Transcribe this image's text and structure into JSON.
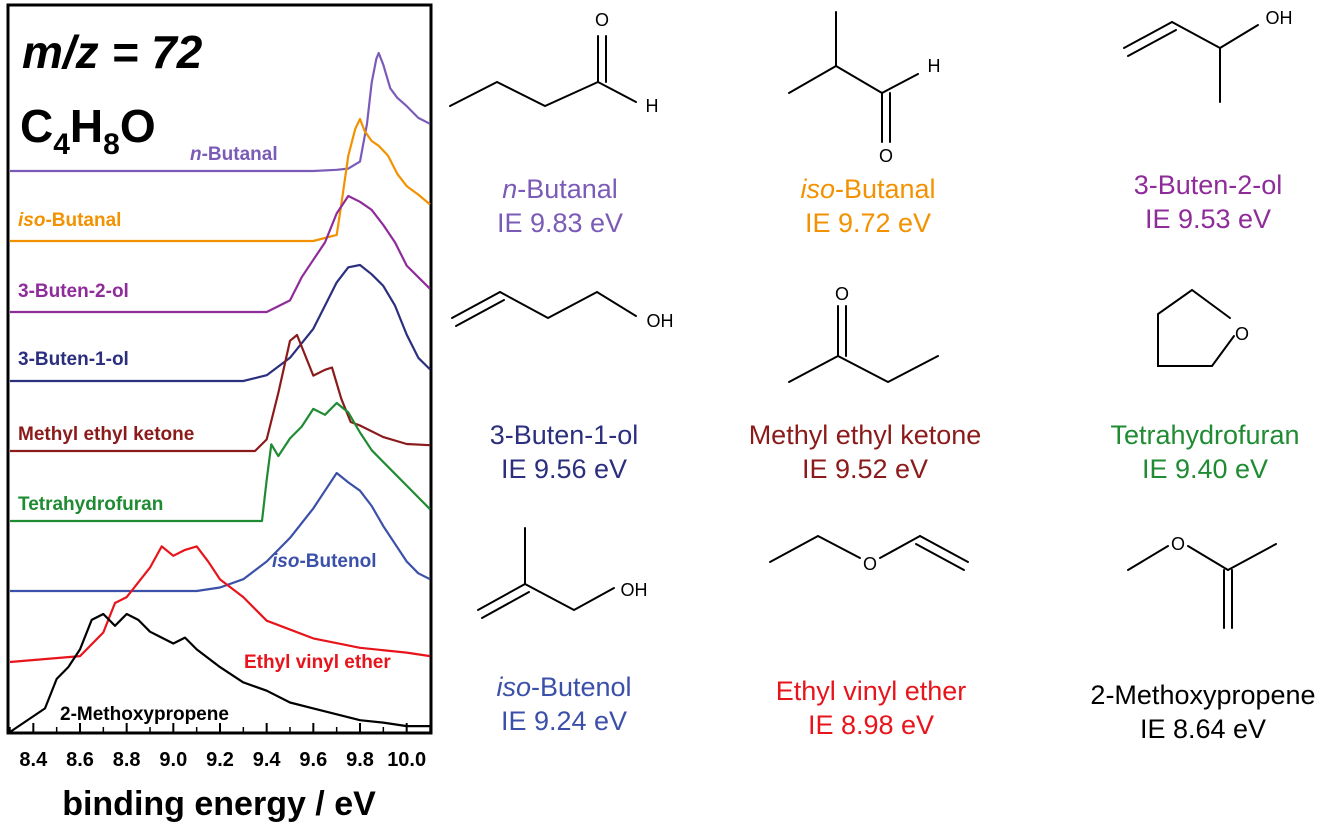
{
  "chart_data": {
    "type": "line",
    "title_mz": "m/z = 72",
    "formula": {
      "C": "C",
      "c_sub": "4",
      "H": "H",
      "h_sub": "8",
      "O": "O"
    },
    "xlabel": "binding energy / eV",
    "ylabel": "",
    "xlim": [
      8.3,
      10.1
    ],
    "xticks": [
      "8.4",
      "8.6",
      "8.8",
      "9.0",
      "9.2",
      "9.4",
      "9.6",
      "9.8",
      "10.0"
    ],
    "grid": false,
    "series": [
      {
        "prefix": "n",
        "name": "-Butanal",
        "color": "#7B5BB8",
        "offset": 1.0,
        "x": [
          8.3,
          9.6,
          9.7,
          9.75,
          9.8,
          9.83,
          9.85,
          9.87,
          9.88,
          9.9,
          9.93,
          9.96,
          10.0,
          10.05,
          10.1
        ],
        "y": [
          0.0,
          0.0,
          0.01,
          0.02,
          0.08,
          0.4,
          0.75,
          0.95,
          1.0,
          0.9,
          0.7,
          0.62,
          0.55,
          0.45,
          0.4
        ]
      },
      {
        "prefix": "iso",
        "name": "-Butanal",
        "color": "#F39200",
        "offset": 1.0,
        "x": [
          8.3,
          9.6,
          9.7,
          9.72,
          9.75,
          9.78,
          9.8,
          9.82,
          9.85,
          9.88,
          9.92,
          9.96,
          10.0,
          10.05,
          10.1
        ],
        "y": [
          0.0,
          0.0,
          0.05,
          0.3,
          0.7,
          0.92,
          1.0,
          0.9,
          0.82,
          0.78,
          0.7,
          0.55,
          0.45,
          0.38,
          0.3
        ]
      },
      {
        "name": "3-Buten-2-ol",
        "color": "#8E2C9A",
        "offset": 1.0,
        "x": [
          8.3,
          9.4,
          9.5,
          9.55,
          9.6,
          9.65,
          9.7,
          9.75,
          9.8,
          9.85,
          9.9,
          9.95,
          10.0,
          10.05,
          10.1
        ],
        "y": [
          0.0,
          0.0,
          0.1,
          0.3,
          0.45,
          0.6,
          0.85,
          1.0,
          0.95,
          0.88,
          0.75,
          0.6,
          0.4,
          0.3,
          0.2
        ]
      },
      {
        "name": "3-Buten-1-ol",
        "color": "#2B2F7E",
        "offset": 1.0,
        "x": [
          8.3,
          9.3,
          9.4,
          9.5,
          9.6,
          9.65,
          9.7,
          9.75,
          9.8,
          9.85,
          9.9,
          9.95,
          10.0,
          10.05,
          10.1
        ],
        "y": [
          0.0,
          0.0,
          0.05,
          0.2,
          0.45,
          0.65,
          0.85,
          0.98,
          1.0,
          0.92,
          0.82,
          0.65,
          0.4,
          0.2,
          0.1
        ]
      },
      {
        "name": "Methyl ethyl ketone",
        "color": "#8B1A1A",
        "offset": 1.0,
        "x": [
          8.3,
          9.35,
          9.4,
          9.45,
          9.5,
          9.53,
          9.56,
          9.6,
          9.65,
          9.68,
          9.72,
          9.76,
          9.8,
          9.9,
          10.0,
          10.1
        ],
        "y": [
          0.0,
          0.0,
          0.1,
          0.5,
          0.95,
          1.0,
          0.85,
          0.65,
          0.7,
          0.72,
          0.45,
          0.25,
          0.22,
          0.12,
          0.06,
          0.05
        ]
      },
      {
        "name": "Tetrahydrofuran",
        "color": "#1F8B32",
        "offset": 1.0,
        "x": [
          8.3,
          9.38,
          9.4,
          9.42,
          9.45,
          9.5,
          9.55,
          9.6,
          9.65,
          9.7,
          9.75,
          9.8,
          9.85,
          9.9,
          9.95,
          10.0,
          10.1
        ],
        "y": [
          0.0,
          0.0,
          0.35,
          0.65,
          0.55,
          0.7,
          0.8,
          0.95,
          0.9,
          1.0,
          0.92,
          0.75,
          0.6,
          0.5,
          0.4,
          0.3,
          0.1
        ]
      },
      {
        "prefix": "iso",
        "name": "-Butenol",
        "color": "#3B50A8",
        "offset": 1.0,
        "x": [
          8.3,
          9.1,
          9.2,
          9.3,
          9.4,
          9.5,
          9.6,
          9.65,
          9.7,
          9.75,
          9.8,
          9.85,
          9.9,
          9.95,
          10.0,
          10.05,
          10.1
        ],
        "y": [
          0.0,
          0.0,
          0.03,
          0.1,
          0.25,
          0.45,
          0.7,
          0.85,
          1.0,
          0.92,
          0.85,
          0.72,
          0.55,
          0.4,
          0.25,
          0.15,
          0.1
        ]
      },
      {
        "name": "Ethyl vinyl ether",
        "color": "#E8141B",
        "offset": 1.0,
        "x": [
          8.3,
          8.6,
          8.7,
          8.75,
          8.8,
          8.9,
          8.95,
          9.0,
          9.05,
          9.1,
          9.15,
          9.2,
          9.3,
          9.4,
          9.6,
          9.8,
          10.0,
          10.1
        ],
        "y": [
          0.0,
          0.05,
          0.25,
          0.5,
          0.55,
          0.8,
          0.98,
          0.9,
          0.95,
          0.98,
          0.85,
          0.7,
          0.55,
          0.35,
          0.2,
          0.12,
          0.08,
          0.05
        ]
      },
      {
        "name": "2-Methoxypropene",
        "color": "#000000",
        "offset": 1.0,
        "x": [
          8.3,
          8.45,
          8.5,
          8.55,
          8.6,
          8.65,
          8.7,
          8.75,
          8.8,
          8.85,
          8.9,
          8.95,
          9.0,
          9.05,
          9.1,
          9.2,
          9.3,
          9.4,
          9.5,
          9.6,
          9.7,
          9.8,
          9.9,
          10.0,
          10.1
        ],
        "y": [
          0.0,
          0.2,
          0.45,
          0.55,
          0.7,
          0.95,
          1.0,
          0.9,
          1.0,
          0.95,
          0.85,
          0.8,
          0.75,
          0.8,
          0.7,
          0.55,
          0.42,
          0.35,
          0.25,
          0.2,
          0.15,
          0.1,
          0.08,
          0.05,
          0.05
        ]
      }
    ]
  },
  "molecules": [
    {
      "prefix": "n",
      "name": "-Butanal",
      "ie": "IE 9.83 eV",
      "color": "#7B5BB8"
    },
    {
      "prefix": "iso",
      "name": "-Butanal",
      "ie": "IE 9.72 eV",
      "color": "#F39200"
    },
    {
      "prefix": "",
      "name": "3-Buten-2-ol",
      "ie": "IE 9.53 eV",
      "color": "#8E2C9A"
    },
    {
      "prefix": "",
      "name": "3-Buten-1-ol",
      "ie": "IE 9.56 eV",
      "color": "#2B2F7E"
    },
    {
      "prefix": "",
      "name": "Methyl ethyl ketone",
      "ie": "IE 9.52 eV",
      "color": "#8B1A1A"
    },
    {
      "prefix": "",
      "name": "Tetrahydrofuran",
      "ie": "IE 9.40 eV",
      "color": "#1F8B32"
    },
    {
      "prefix": "iso",
      "name": "-Butenol",
      "ie": "IE 9.24 eV",
      "color": "#3B50A8"
    },
    {
      "prefix": "",
      "name": "Ethyl vinyl ether",
      "ie": "IE 8.98 eV",
      "color": "#E8141B"
    },
    {
      "prefix": "",
      "name": "2-Methoxypropene",
      "ie": "IE 8.64 eV",
      "color": "#000000"
    }
  ],
  "atom_labels": {
    "oxygen": "O",
    "hydrogen": "H",
    "hydroxyl": "OH"
  }
}
